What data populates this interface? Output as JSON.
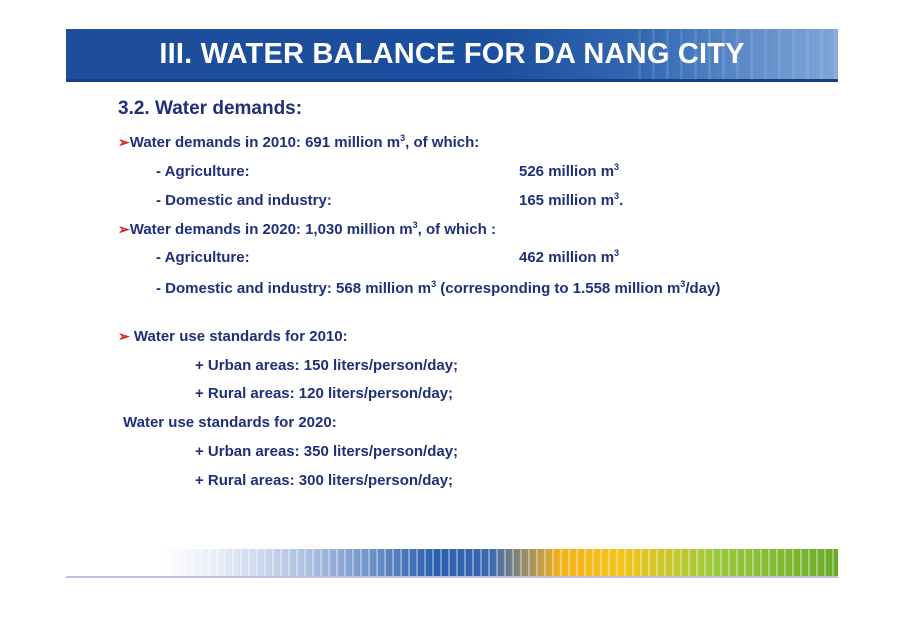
{
  "title": "III. WATER BALANCE FOR DA NANG CITY",
  "section_heading": "3.2. Water demands:",
  "demand_2010": {
    "arrow": "➢",
    "text": "Water demands in 2010:   691 million m",
    "sup": "3",
    "tail": ", of which:",
    "agri_label": "- Agriculture:",
    "agri_value": "526 million m",
    "agri_sup": "3",
    "dom_label": "- Domestic and industry:",
    "dom_value": "165 million m",
    "dom_sup": "3",
    "dom_tail": "."
  },
  "demand_2020": {
    "arrow": "➢",
    "text": "Water demands in 2020:   1,030 million m",
    "sup": "3",
    "tail": ", of which :",
    "agri_label": "- Agriculture:",
    "agri_value": "462 million m",
    "agri_sup": "3",
    "dom_part1": "- Domestic and industry: 568 million m",
    "dom_sup1": "3",
    "dom_part2": " (corresponding to 1.558 million m",
    "dom_sup2": "3",
    "dom_part3": "/day)"
  },
  "standards_2010": {
    "arrow": "➢",
    "heading": " Water use standards for 2010:",
    "urban": "+ Urban areas: 150 liters/person/day;",
    "rural": "+ Rural areas: 120 liters/person/day;"
  },
  "standards_2020": {
    "heading": "Water use standards for 2020:",
    "urban": "+ Urban areas: 350 liters/person/day;",
    "rural": "+ Rural areas: 300 liters/person/day;"
  },
  "colors": {
    "title_bg": "#1f4d9c",
    "text": "#1f2f7a",
    "bullet": "#d22020"
  }
}
